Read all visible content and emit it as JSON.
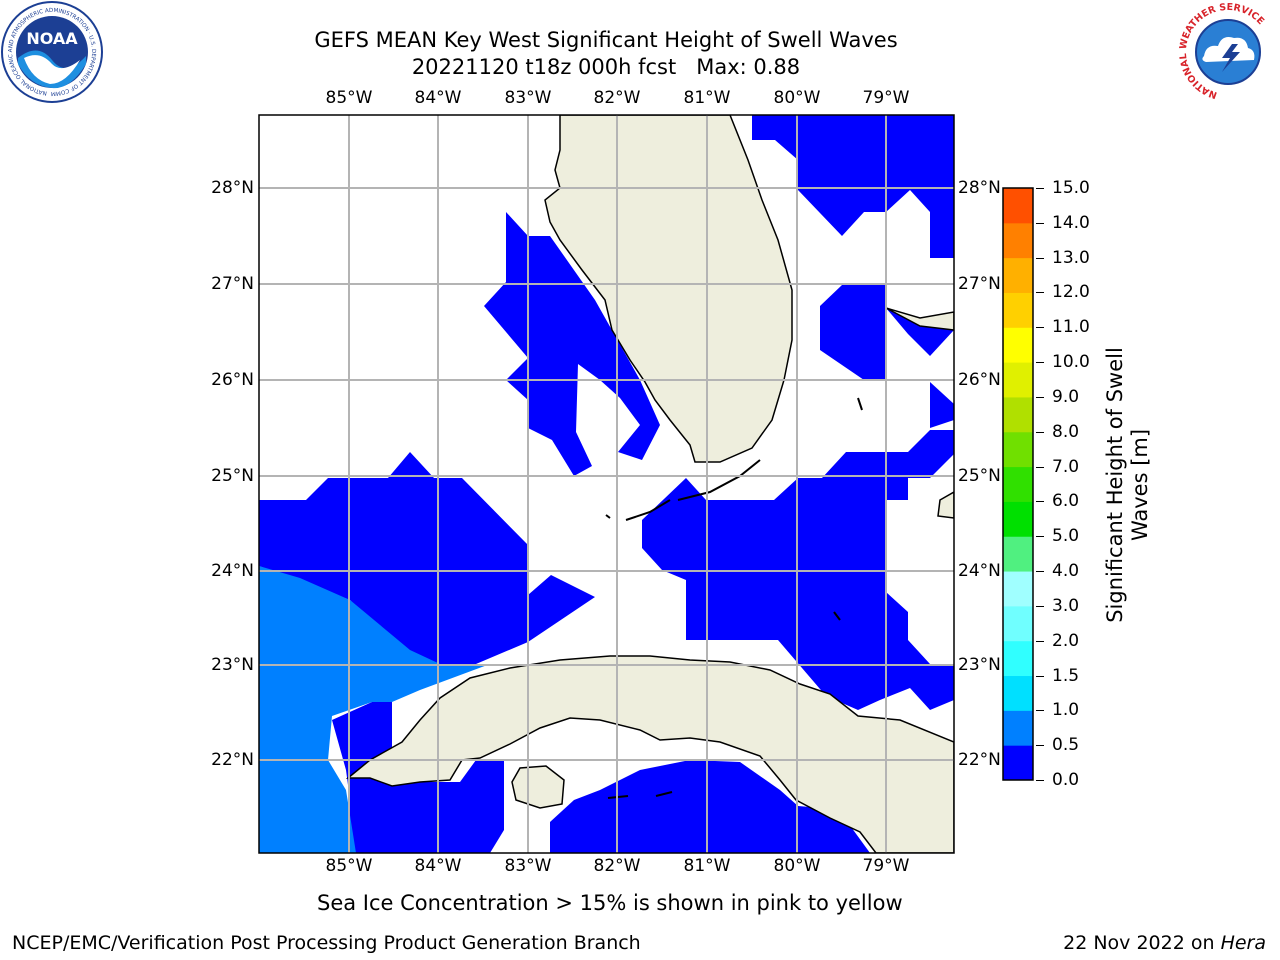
{
  "header": {
    "title_line1": "GEFS MEAN Key West Significant Height of Swell Waves",
    "title_line2": "20221120 t18z 000h fcst   Max: 0.88"
  },
  "logos": {
    "noaa": {
      "center_text": "NOAA",
      "ring_text": "NATIONAL OCEANIC AND ATMOSPHERIC ADMINISTRATION · U.S. DEPARTMENT OF COMMERCE"
    },
    "nws": {
      "ring_text": "NATIONAL WEATHER SERVICE"
    }
  },
  "map": {
    "region": "Key West",
    "lon_ticks": [
      "85°W",
      "84°W",
      "83°W",
      "82°W",
      "81°W",
      "80°W",
      "79°W"
    ],
    "lat_ticks": [
      "28°N",
      "27°N",
      "26°N",
      "25°N",
      "24°N",
      "23°N",
      "22°N"
    ],
    "gridlines": true,
    "colors": {
      "land": "#eeeedd",
      "ocean_low": "#0000ff",
      "ocean_mid": "#0080ff",
      "grid": "#b4b4b4"
    }
  },
  "colorbar": {
    "label": "Significant Height of Swell Waves [m]",
    "label_line1": "Significant Height of Swell",
    "label_line2": "Waves [m]",
    "ticks": [
      "0.0",
      "0.5",
      "1.0",
      "1.5",
      "2.0",
      "3.0",
      "4.0",
      "5.0",
      "6.0",
      "7.0",
      "8.0",
      "9.0",
      "10.0",
      "11.0",
      "12.0",
      "13.0",
      "14.0",
      "15.0"
    ],
    "colors": [
      "#0000ff",
      "#0080ff",
      "#00e0ff",
      "#30ffff",
      "#70ffff",
      "#a0ffff",
      "#50f080",
      "#00e000",
      "#30e000",
      "#70e000",
      "#b0e000",
      "#e0f000",
      "#ffff00",
      "#ffd000",
      "#ffb000",
      "#ff8000",
      "#ff5000",
      "#ff2000",
      "#ff0000"
    ]
  },
  "notes": {
    "sea_ice": "Sea Ice Concentration > 15% is shown in pink to yellow"
  },
  "footer": {
    "left": "NCEP/EMC/Verification Post Processing Product Generation Branch",
    "date": "22 Nov 2022 on ",
    "machine": "Hera"
  }
}
